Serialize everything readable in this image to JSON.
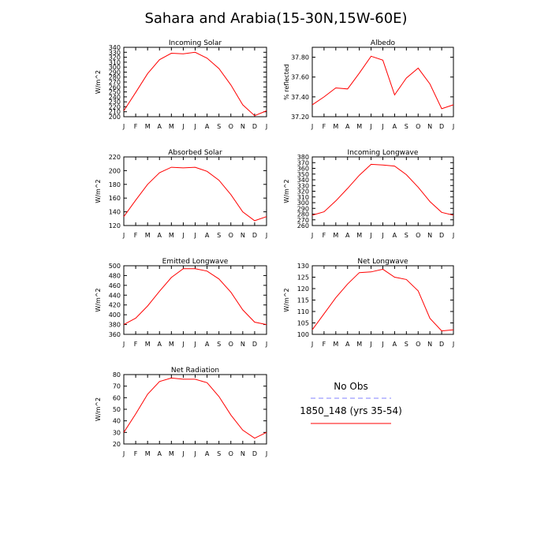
{
  "page_title": "Sahara and Arabia(15-30N,15W-60E)",
  "legend": {
    "entries": [
      {
        "label": "No Obs",
        "color": "#8080ff",
        "style": "dashed"
      },
      {
        "label": "1850_148 (yrs 35-54)",
        "color": "#ff0000",
        "style": "solid"
      }
    ]
  },
  "chart_data": [
    {
      "type": "line",
      "title": "Incoming Solar",
      "xlabel": "",
      "ylabel": "W/m^2",
      "categories": [
        "J",
        "F",
        "M",
        "A",
        "M",
        "J",
        "J",
        "A",
        "S",
        "O",
        "N",
        "D",
        "J"
      ],
      "ylim": [
        200,
        340
      ],
      "yticks": [
        "200",
        "210",
        "220",
        "230",
        "240",
        "250",
        "260",
        "270",
        "280",
        "290",
        "300",
        "310",
        "320",
        "330",
        "340"
      ],
      "series": [
        {
          "name": "1850_148 (yrs 35-54)",
          "color": "#ff0000",
          "values": [
            212,
            249,
            287,
            315,
            328,
            327,
            330,
            318,
            297,
            264,
            224,
            202,
            212
          ]
        }
      ]
    },
    {
      "type": "line",
      "title": "Albedo",
      "xlabel": "",
      "ylabel": "% reflected",
      "categories": [
        "J",
        "F",
        "M",
        "A",
        "M",
        "J",
        "J",
        "A",
        "S",
        "O",
        "N",
        "D",
        "J"
      ],
      "ylim": [
        37.2,
        37.9
      ],
      "yticks": [
        "37.20",
        "37.40",
        "37.60",
        "37.80"
      ],
      "series": [
        {
          "name": "1850_148 (yrs 35-54)",
          "color": "#ff0000",
          "values": [
            37.32,
            37.4,
            37.49,
            37.48,
            37.64,
            37.81,
            37.77,
            37.42,
            37.59,
            37.69,
            37.53,
            37.28,
            37.32
          ]
        }
      ]
    },
    {
      "type": "line",
      "title": "Absorbed Solar",
      "xlabel": "",
      "ylabel": "W/m^2",
      "categories": [
        "J",
        "F",
        "M",
        "A",
        "M",
        "J",
        "J",
        "A",
        "S",
        "O",
        "N",
        "D",
        "J"
      ],
      "ylim": [
        120,
        220
      ],
      "yticks": [
        "120",
        "140",
        "160",
        "180",
        "200",
        "220"
      ],
      "series": [
        {
          "name": "1850_148 (yrs 35-54)",
          "color": "#ff0000",
          "values": [
            133,
            157,
            180,
            197,
            205,
            204,
            205,
            199,
            186,
            165,
            140,
            127,
            133
          ]
        }
      ]
    },
    {
      "type": "line",
      "title": "Incoming Longwave",
      "xlabel": "",
      "ylabel": "W/m^2",
      "categories": [
        "J",
        "F",
        "M",
        "A",
        "M",
        "J",
        "J",
        "A",
        "S",
        "O",
        "N",
        "D",
        "J"
      ],
      "ylim": [
        260,
        380
      ],
      "yticks": [
        "260",
        "270",
        "280",
        "290",
        "300",
        "310",
        "320",
        "330",
        "340",
        "350",
        "360",
        "370",
        "380"
      ],
      "series": [
        {
          "name": "1850_148 (yrs 35-54)",
          "color": "#ff0000",
          "values": [
            278,
            284,
            303,
            325,
            348,
            367,
            366,
            364,
            349,
            327,
            302,
            283,
            278
          ]
        }
      ]
    },
    {
      "type": "line",
      "title": "Emitted Longwave",
      "xlabel": "",
      "ylabel": "W/m^2",
      "categories": [
        "J",
        "F",
        "M",
        "A",
        "M",
        "J",
        "J",
        "A",
        "S",
        "O",
        "N",
        "D",
        "J"
      ],
      "ylim": [
        360,
        500
      ],
      "yticks": [
        "360",
        "380",
        "400",
        "420",
        "440",
        "460",
        "480",
        "500"
      ],
      "series": [
        {
          "name": "1850_148 (yrs 35-54)",
          "color": "#ff0000",
          "values": [
            380,
            393,
            418,
            448,
            476,
            494,
            494,
            489,
            473,
            446,
            410,
            385,
            380
          ]
        }
      ]
    },
    {
      "type": "line",
      "title": "Net Longwave",
      "xlabel": "",
      "ylabel": "W/m^2",
      "categories": [
        "J",
        "F",
        "M",
        "A",
        "M",
        "J",
        "J",
        "A",
        "S",
        "O",
        "N",
        "D",
        "J"
      ],
      "ylim": [
        100,
        130
      ],
      "yticks": [
        "100",
        "105",
        "110",
        "115",
        "120",
        "125",
        "130"
      ],
      "series": [
        {
          "name": "1850_148 (yrs 35-54)",
          "color": "#ff0000",
          "values": [
            102,
            109,
            116,
            122,
            127,
            127.3,
            128.5,
            125,
            124,
            119,
            107,
            101.5,
            102
          ]
        }
      ]
    },
    {
      "type": "line",
      "title": "Net Radiation",
      "xlabel": "",
      "ylabel": "W/m^2",
      "categories": [
        "J",
        "F",
        "M",
        "A",
        "M",
        "J",
        "J",
        "A",
        "S",
        "O",
        "N",
        "D",
        "J"
      ],
      "ylim": [
        20,
        80
      ],
      "yticks": [
        "20",
        "30",
        "40",
        "50",
        "60",
        "70",
        "80"
      ],
      "series": [
        {
          "name": "1850_148 (yrs 35-54)",
          "color": "#ff0000",
          "values": [
            30,
            46,
            63,
            74,
            77,
            76,
            76,
            73,
            61,
            45,
            32,
            25,
            30
          ]
        }
      ]
    }
  ]
}
